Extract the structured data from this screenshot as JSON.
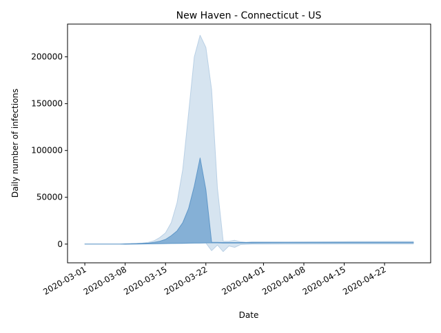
{
  "chart_data": {
    "type": "area",
    "title": "New Haven - Connecticut - US",
    "xlabel": "Date",
    "ylabel": "Daily number of infections",
    "x_range": [
      "2020-02-27",
      "2020-04-30"
    ],
    "ylim": [
      -20000,
      235000
    ],
    "x_ticks": [
      "2020-03-01",
      "2020-03-08",
      "2020-03-15",
      "2020-03-22",
      "2020-04-01",
      "2020-04-08",
      "2020-04-15",
      "2020-04-22"
    ],
    "y_ticks": [
      0,
      50000,
      100000,
      150000,
      200000
    ],
    "y_tick_labels": [
      "0",
      "50000",
      "100000",
      "150000",
      "200000"
    ],
    "grid": false,
    "legend": "none",
    "colors": {
      "outer_band": "#d6e4f0",
      "outer_edge": "#b9d0e5",
      "inner_band": "#85b0d6",
      "inner_edge": "#5f97c8"
    },
    "series": [
      {
        "role": "outer-band",
        "x": [
          "2020-03-01",
          "2020-03-02",
          "2020-03-03",
          "2020-03-04",
          "2020-03-05",
          "2020-03-06",
          "2020-03-07",
          "2020-03-08",
          "2020-03-09",
          "2020-03-10",
          "2020-03-11",
          "2020-03-12",
          "2020-03-13",
          "2020-03-14",
          "2020-03-15",
          "2020-03-16",
          "2020-03-17",
          "2020-03-18",
          "2020-03-19",
          "2020-03-20",
          "2020-03-21",
          "2020-03-22",
          "2020-03-23",
          "2020-03-24",
          "2020-03-25",
          "2020-03-26",
          "2020-03-27",
          "2020-03-28",
          "2020-03-29",
          "2020-03-30",
          "2020-04-05",
          "2020-04-15",
          "2020-04-25",
          "2020-04-27"
        ],
        "upper": [
          0,
          0,
          0,
          0,
          0,
          0,
          0,
          500,
          700,
          900,
          1200,
          1800,
          3500,
          7000,
          12000,
          23000,
          44000,
          80000,
          140000,
          200000,
          223000,
          210000,
          165000,
          60000,
          3000,
          3000,
          4000,
          2500,
          2000,
          2500,
          2500,
          2600,
          2800,
          2800
        ],
        "lower": [
          0,
          0,
          0,
          0,
          0,
          0,
          0,
          -300,
          -200,
          -100,
          0,
          200,
          300,
          400,
          500,
          600,
          700,
          800,
          900,
          1000,
          1100,
          1200,
          -7000,
          -1000,
          -8000,
          -2000,
          -3500,
          -500,
          -200,
          0,
          100,
          200,
          200,
          200
        ]
      },
      {
        "role": "inner-band",
        "x": [
          "2020-03-01",
          "2020-03-02",
          "2020-03-03",
          "2020-03-04",
          "2020-03-05",
          "2020-03-06",
          "2020-03-07",
          "2020-03-08",
          "2020-03-09",
          "2020-03-10",
          "2020-03-11",
          "2020-03-12",
          "2020-03-13",
          "2020-03-14",
          "2020-03-15",
          "2020-03-16",
          "2020-03-17",
          "2020-03-18",
          "2020-03-19",
          "2020-03-20",
          "2020-03-21",
          "2020-03-22",
          "2020-03-23",
          "2020-03-24",
          "2020-03-25",
          "2020-03-26",
          "2020-03-27",
          "2020-03-28",
          "2020-03-29",
          "2020-03-30",
          "2020-04-05",
          "2020-04-15",
          "2020-04-25",
          "2020-04-27"
        ],
        "upper": [
          0,
          0,
          0,
          0,
          0,
          0,
          0,
          200,
          300,
          500,
          700,
          1000,
          1800,
          3000,
          5000,
          9000,
          14000,
          23000,
          38000,
          62000,
          92000,
          58000,
          2000,
          1800,
          1700,
          1700,
          1700,
          1700,
          1700,
          1700,
          1700,
          1800,
          1800,
          1800
        ],
        "lower": [
          0,
          0,
          0,
          0,
          0,
          0,
          0,
          0,
          100,
          150,
          200,
          300,
          400,
          500,
          600,
          700,
          800,
          900,
          1000,
          1100,
          1200,
          1300,
          1300,
          1300,
          1200,
          1200,
          1200,
          1200,
          1200,
          1200,
          1300,
          1300,
          1300,
          1300
        ]
      }
    ]
  }
}
